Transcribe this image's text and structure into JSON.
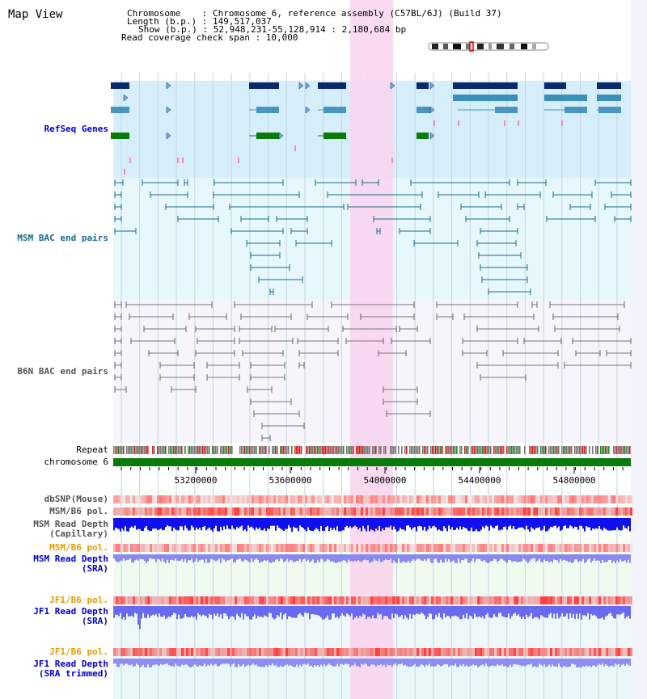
{
  "title": "Map View",
  "info": {
    "chromosome": "Chromosome    : Chromosome 6, reference assembly (C57BL/6J) (Build 37)",
    "length": "Length (b.p.) : 149,517,037",
    "show": "Show (b.p.) : 52,948,231-55,128,914 : 2,180,684 bp",
    "coverage": "Read coverage check span : 10,000"
  },
  "tracks": {
    "refseq": "RefSeq Genes",
    "msm_bac": "MSM BAC end pairs",
    "b6n_bac": "B6N BAC end pairs",
    "repeat": "Repeat",
    "chromosome": "chromosome 6",
    "dbsnp": "dbSNP(Mouse)",
    "msm_b6_pol": "MSM/B6 pol.",
    "msm_depth_cap_1": "MSM Read Depth",
    "msm_depth_cap_2": "(Capillary)",
    "msm_b6_pol2": "MSM/B6 pol.",
    "msm_depth_sra_1": "MSM Read Depth",
    "msm_depth_sra_2": "(SRA)",
    "jf1_pol": "JF1/B6 pol.",
    "jf1_depth_sra_1": "JF1 Read Depth",
    "jf1_depth_sra_2": "(SRA)",
    "jf1_pol2": "JF1/B6 pol.",
    "jf1_depth_trim_1": "JF1 Read Depth",
    "jf1_depth_trim_2": "(SRA trimmed)"
  },
  "axis_ticks": [
    "53200000",
    "53600000",
    "54000000",
    "54400000",
    "54800000"
  ],
  "colors": {
    "refseq_label": "#0000cc",
    "msm_label": "#1a6b8a",
    "b6n_label": "#555555",
    "jf1_pol_label": "#e69a00",
    "depth_label": "#0000cc",
    "highlight": "#f9d4ef",
    "chrom_bar": "#0a7a0a"
  }
}
